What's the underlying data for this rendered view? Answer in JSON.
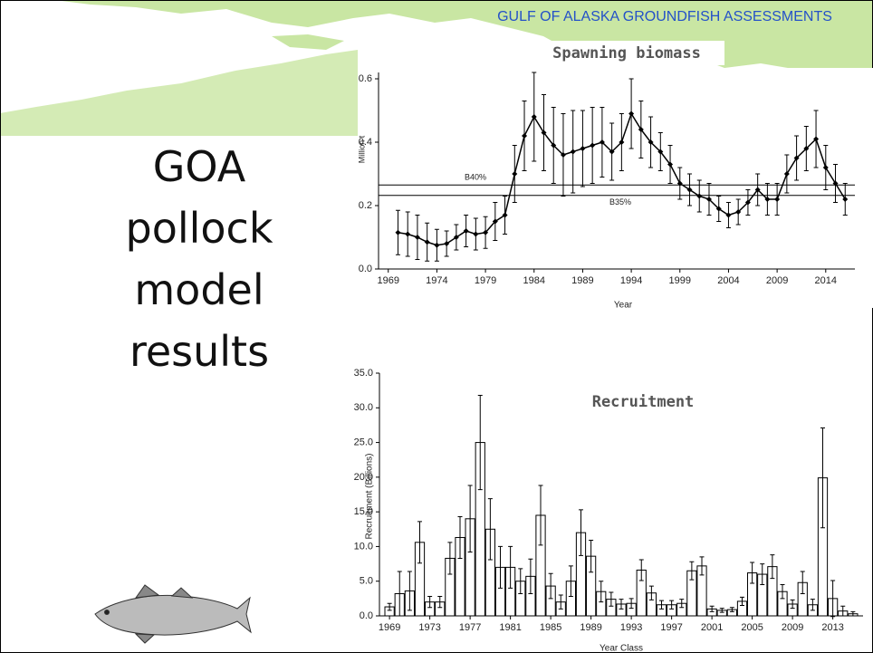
{
  "header": "GULF OF ALASKA GROUNDFISH ASSESSMENTS",
  "slide_title": "GOA pollock model results",
  "chart_data": [
    {
      "type": "line",
      "title": "Spawning biomass",
      "y_label": "Million t",
      "x_label": "Year",
      "color": "#000000",
      "x": [
        1970,
        1971,
        1972,
        1973,
        1974,
        1975,
        1976,
        1977,
        1978,
        1979,
        1980,
        1981,
        1982,
        1983,
        1984,
        1985,
        1986,
        1987,
        1988,
        1989,
        1990,
        1991,
        1992,
        1993,
        1994,
        1995,
        1996,
        1997,
        1998,
        1999,
        2000,
        2001,
        2002,
        2003,
        2004,
        2005,
        2006,
        2007,
        2008,
        2009,
        2010,
        2011,
        2012,
        2013,
        2014,
        2015,
        2016
      ],
      "values": [
        0.115,
        0.11,
        0.1,
        0.085,
        0.075,
        0.08,
        0.1,
        0.12,
        0.11,
        0.115,
        0.15,
        0.17,
        0.3,
        0.42,
        0.48,
        0.43,
        0.39,
        0.36,
        0.37,
        0.38,
        0.39,
        0.4,
        0.37,
        0.4,
        0.49,
        0.44,
        0.4,
        0.37,
        0.33,
        0.27,
        0.25,
        0.23,
        0.22,
        0.19,
        0.17,
        0.18,
        0.21,
        0.25,
        0.22,
        0.22,
        0.3,
        0.35,
        0.38,
        0.41,
        0.32,
        0.27,
        0.22
      ],
      "errors": [
        0.07,
        0.07,
        0.07,
        0.06,
        0.05,
        0.04,
        0.04,
        0.05,
        0.05,
        0.05,
        0.06,
        0.06,
        0.09,
        0.11,
        0.14,
        0.12,
        0.12,
        0.13,
        0.13,
        0.12,
        0.12,
        0.11,
        0.09,
        0.09,
        0.11,
        0.09,
        0.08,
        0.06,
        0.06,
        0.05,
        0.05,
        0.05,
        0.05,
        0.04,
        0.04,
        0.04,
        0.04,
        0.05,
        0.05,
        0.05,
        0.06,
        0.07,
        0.07,
        0.09,
        0.07,
        0.06,
        0.05
      ],
      "reference_lines": [
        {
          "label": "B40%",
          "value": 0.265
        },
        {
          "label": "B35%",
          "value": 0.232
        }
      ],
      "xlim": [
        1968,
        2017
      ],
      "xticks": [
        1969,
        1974,
        1979,
        1984,
        1989,
        1994,
        1999,
        2004,
        2009,
        2014
      ],
      "ylim": [
        0,
        0.62
      ],
      "yticks": [
        {
          "value": 0,
          "label": "0.0"
        },
        0.2,
        0.4,
        0.6
      ]
    },
    {
      "type": "bar",
      "title": "Recruitment",
      "y_label": "Recruitment (Billions)",
      "x_label": "Year Class",
      "color": "#ffffff",
      "edge_color": "#000000",
      "x": [
        1969,
        1970,
        1971,
        1972,
        1973,
        1974,
        1975,
        1976,
        1977,
        1978,
        1979,
        1980,
        1981,
        1982,
        1983,
        1984,
        1985,
        1986,
        1987,
        1988,
        1989,
        1990,
        1991,
        1992,
        1993,
        1994,
        1995,
        1996,
        1997,
        1998,
        1999,
        2000,
        2001,
        2002,
        2003,
        2004,
        2005,
        2006,
        2007,
        2008,
        2009,
        2010,
        2011,
        2012,
        2013,
        2014,
        2015
      ],
      "values": [
        1.3,
        3.2,
        3.6,
        10.6,
        2.0,
        2.0,
        8.3,
        11.3,
        14.0,
        25.0,
        12.5,
        7.0,
        7.0,
        5.0,
        5.7,
        14.5,
        4.3,
        2.0,
        5.0,
        12.0,
        8.6,
        3.5,
        2.4,
        1.7,
        1.8,
        6.6,
        3.3,
        1.6,
        1.6,
        1.8,
        6.5,
        7.2,
        1.0,
        0.8,
        0.9,
        2.1,
        6.2,
        6.0,
        7.1,
        3.5,
        1.7,
        4.8,
        1.6,
        19.9,
        2.5,
        0.7,
        0.3
      ],
      "errors": [
        0.5,
        3.2,
        2.8,
        3.0,
        0.8,
        0.8,
        2.3,
        3.0,
        4.8,
        6.8,
        4.4,
        3.0,
        3.0,
        1.8,
        2.5,
        4.3,
        1.8,
        1.0,
        2.2,
        3.3,
        2.3,
        1.5,
        1.0,
        0.7,
        0.7,
        1.5,
        1.0,
        0.6,
        0.6,
        0.6,
        1.3,
        1.3,
        0.4,
        0.3,
        0.3,
        0.6,
        1.5,
        1.5,
        1.7,
        1.0,
        0.6,
        1.6,
        0.8,
        7.2,
        2.6,
        0.7,
        0.3
      ],
      "xlim": [
        1968,
        2016
      ],
      "xticks": [
        1969,
        1973,
        1977,
        1981,
        1985,
        1989,
        1993,
        1997,
        2001,
        2005,
        2009,
        2013
      ],
      "ylim": [
        0,
        35
      ],
      "yticks": [
        {
          "value": 0,
          "label": "0.0"
        },
        {
          "value": 5,
          "label": "5.0"
        },
        {
          "value": 10,
          "label": "10.0"
        },
        {
          "value": 15,
          "label": "15.0"
        },
        {
          "value": 20,
          "label": "20.0"
        },
        {
          "value": 25,
          "label": "25.0"
        },
        {
          "value": 30,
          "label": "30.0"
        },
        {
          "value": 35,
          "label": "35.0"
        }
      ]
    }
  ]
}
